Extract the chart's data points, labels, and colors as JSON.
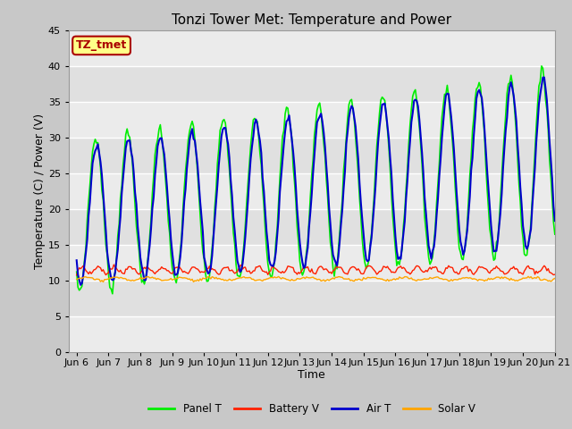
{
  "title": "Tonzi Tower Met: Temperature and Power",
  "xlabel": "Time",
  "ylabel": "Temperature (C) / Power (V)",
  "ylim": [
    0,
    45
  ],
  "yticks": [
    0,
    5,
    10,
    15,
    20,
    25,
    30,
    35,
    40,
    45
  ],
  "xlim_start": 5.75,
  "xlim_end": 21.0,
  "xtick_labels": [
    "Jun 6",
    "Jun 7",
    "Jun 8",
    "Jun 9",
    "Jun 10",
    "Jun 11",
    "Jun 12",
    "Jun 13",
    "Jun 14",
    "Jun 15",
    "Jun 16",
    "Jun 17",
    "Jun 18",
    "Jun 19",
    "Jun 20",
    "Jun 21"
  ],
  "xtick_positions": [
    6,
    7,
    8,
    9,
    10,
    11,
    12,
    13,
    14,
    15,
    16,
    17,
    18,
    19,
    20,
    21
  ],
  "colors": {
    "panel_t": "#00EE00",
    "battery_v": "#FF2000",
    "air_t": "#0000CC",
    "solar_v": "#FFA500"
  },
  "legend_labels": [
    "Panel T",
    "Battery V",
    "Air T",
    "Solar V"
  ],
  "annotation_text": "TZ_tmet",
  "annotation_bg": "#FFFF88",
  "annotation_border": "#AA0000",
  "band_colors": [
    "#EBEBEB",
    "#E0E0E0"
  ],
  "fig_bg": "#C8C8C8",
  "title_fontsize": 11,
  "label_fontsize": 9,
  "tick_fontsize": 8
}
